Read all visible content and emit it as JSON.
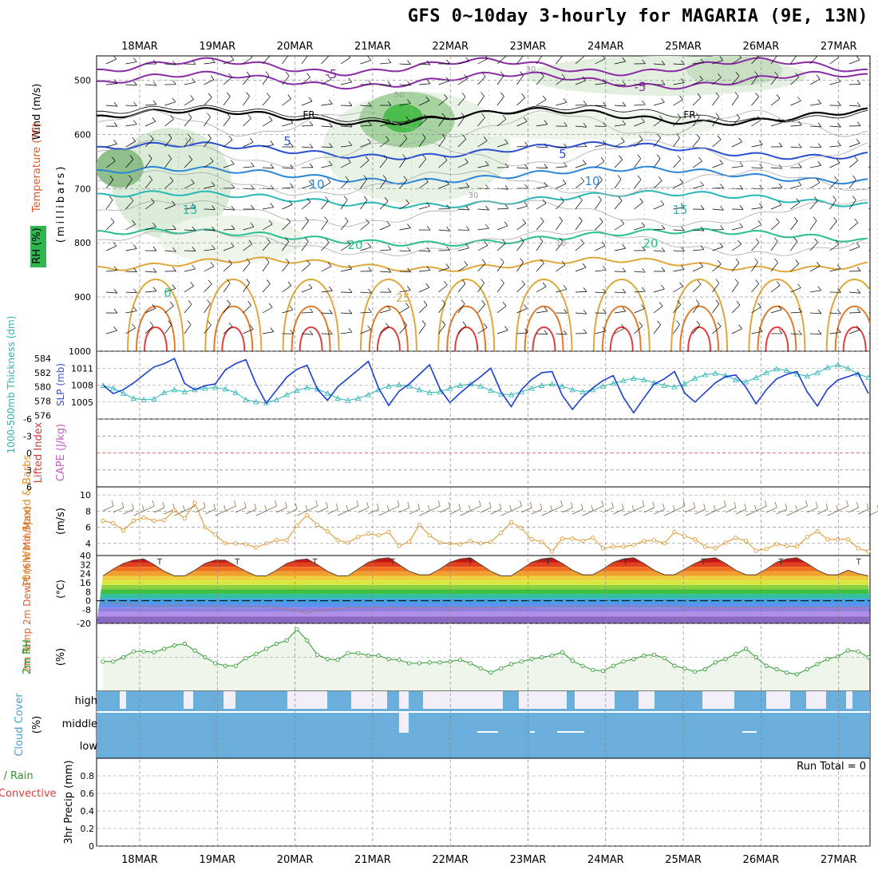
{
  "title": "GFS 0~10day 3-hourly for MAGARIA (9E, 13N)",
  "dates": [
    "18MAR",
    "19MAR",
    "20MAR",
    "21MAR",
    "22MAR",
    "23MAR",
    "24MAR",
    "25MAR",
    "26MAR",
    "27MAR"
  ],
  "colors": {
    "grid": "#888888",
    "rh_fill": "#9fc99f",
    "slp_line": "#1a3fd1",
    "thickness_line": "#2ab5b5",
    "wind_speed": "#e09020",
    "rh2m": "#2a9a2a",
    "cloud": "#6aaedc",
    "zero_line": "#d04040"
  },
  "panels": {
    "upper_air": {
      "ylabel_wind": "Wind (m/s)",
      "ylabel_temp": "Temperature (°C)",
      "ylabel_rh": "RH (%)",
      "ylabel_units": "(millibars)",
      "ticks": [
        "500",
        "600",
        "700",
        "800",
        "900",
        "1000"
      ],
      "contour_labels": [
        "-5",
        "-5",
        "FR",
        "FR",
        "5",
        "5",
        "10",
        "10",
        "15",
        "15",
        "20",
        "20",
        "30",
        "50",
        "10",
        "10",
        "30",
        "0",
        "25"
      ]
    },
    "slp_thickness": {
      "ylabel_left": "1000-500mb Thickness (dm)",
      "ylabel_right": "SLP (mb)",
      "ticks_left": [
        "584",
        "582",
        "580",
        "578",
        "576"
      ],
      "ticks_right": [
        "1011",
        "1008",
        "1005"
      ]
    },
    "cape_li": {
      "ylabel_left": "Lifted Index",
      "ylabel_right": "CAPE (J/kg)",
      "ticks": [
        "-6",
        "-3",
        "0",
        "3",
        "6"
      ]
    },
    "wind10m": {
      "ylabel": "10m Wind Speed & Barbs",
      "units": "(m/s)",
      "ticks": [
        "10",
        "8",
        "6",
        "4"
      ]
    },
    "temp2m": {
      "ylabel": "2m Temp 2m DewPt (6hr Min/Max)",
      "units": "(°C)",
      "ticks": [
        "40",
        "32",
        "24",
        "16",
        "8",
        "0",
        "-8",
        "-20"
      ]
    },
    "rh2m": {
      "ylabel": "2m RH",
      "units": "(%)"
    },
    "cloud": {
      "ylabel": "Cloud Cover",
      "units": "(%)",
      "levels": [
        "high",
        "middle",
        "low"
      ]
    },
    "precip": {
      "ylabel_left": "Total / Rain",
      "ylabel_left2": "Convective",
      "ylabel": "3hr Precip (mm)",
      "ticks": [
        "0.8",
        "0.6",
        "0.4",
        "0.2",
        "0"
      ],
      "run_total": "Run Total = 0"
    }
  },
  "chart_data": [
    {
      "type": "line",
      "name": "upper-air cross section",
      "x": [
        "18MAR",
        "19MAR",
        "20MAR",
        "21MAR",
        "22MAR",
        "23MAR",
        "24MAR",
        "25MAR",
        "26MAR",
        "27MAR"
      ],
      "ylim": [
        1000,
        450
      ],
      "ylabel": "(millibars)"
    },
    {
      "type": "line",
      "name": "SLP and thickness",
      "series": [
        {
          "name": "SLP (mb)",
          "values": [
            1008,
            1006.5,
            1007.2,
            1008.4,
            1009.8,
            1011.2,
            1011.8,
            1012.7,
            1008.3,
            1007.2,
            1007.9,
            1008.2,
            1010.7,
            1011.8,
            1012.5,
            1008.2,
            1004.8,
            1007.1,
            1009.4,
            1010.8,
            1011.5,
            1007.3,
            1005.3,
            1007.7,
            1009.2,
            1010.7,
            1012.2,
            1007.5,
            1004.4,
            1006.9,
            1008.2,
            1009.9,
            1011.6,
            1007.4,
            1004.9,
            1006.6,
            1008.1,
            1009.5,
            1011,
            1006.8,
            1004.2,
            1007.2,
            1009,
            1010.2,
            1010.4,
            1006.2,
            1003.7,
            1005.9,
            1007.5,
            1008.8,
            1009.7,
            1005.8,
            1003.1,
            1005.7,
            1008.2,
            1009.1,
            1010.4,
            1006.6,
            1005,
            1006.7,
            1008.4,
            1009.5,
            1009.8,
            1007.6,
            1004.7,
            1007.2,
            1009.1,
            1009.9,
            1010.4,
            1006.8,
            1004.3,
            1007.3,
            1008.9,
            1009.5,
            1010.1,
            1006.5
          ]
        },
        {
          "name": "1000-500mb Thickness (dm)",
          "values": [
            580.2,
            579.8,
            579.1,
            578.4,
            578.2,
            578.3,
            579.2,
            579.6,
            579.3,
            579.6,
            579.8,
            579.9,
            579.7,
            579.2,
            578.2,
            577.9,
            577.8,
            578.2,
            578.9,
            579.5,
            579.9,
            579.7,
            579.1,
            578.4,
            578.1,
            578.4,
            578.9,
            579.6,
            580.1,
            580.3,
            580.1,
            579.6,
            579.2,
            579.3,
            579.8,
            580.2,
            580.4,
            580.1,
            579.5,
            579.0,
            578.9,
            579.3,
            579.8,
            580.2,
            580.4,
            580.1,
            579.6,
            579.3,
            579.6,
            580.1,
            580.5,
            580.9,
            581.2,
            581.0,
            580.6,
            580.2,
            580.0,
            580.4,
            581.2,
            581.7,
            581.9,
            581.6,
            581.0,
            580.7,
            581.3,
            582.0,
            582.5,
            582.3,
            581.8,
            581.5,
            582.0,
            582.7,
            583.1,
            582.6,
            581.8,
            581.3
          ]
        }
      ]
    },
    {
      "type": "line",
      "name": "10m wind speed",
      "ylim": [
        2.5,
        11
      ],
      "series": [
        {
          "name": "Speed (m/s)",
          "values": [
            6.8,
            6.5,
            5.6,
            6.8,
            7.2,
            6.8,
            6.9,
            8.1,
            7.1,
            9.0,
            6.0,
            5.1,
            4.0,
            4.0,
            3.9,
            3.5,
            4.0,
            4.4,
            4.4,
            6.2,
            7.5,
            6.3,
            5.5,
            4.4,
            4.1,
            4.8,
            5.2,
            5.0,
            5.4,
            3.7,
            4.2,
            6.3,
            5.0,
            4.1,
            4.0,
            3.9,
            4.3,
            4.0,
            4.2,
            5.3,
            6.6,
            5.9,
            4.5,
            4.2,
            3.0,
            4.6,
            4.6,
            4.3,
            4.7,
            3.4,
            3.6,
            3.6,
            3.8,
            4.3,
            4.4,
            4.0,
            5.4,
            4.9,
            4.5,
            3.6,
            3.4,
            4.1,
            4.7,
            4.3,
            3.1,
            3.3,
            3.9,
            3.7,
            3.6,
            4.8,
            5.5,
            4.5,
            4.5,
            4.5,
            3.4,
            3.0
          ]
        }
      ]
    },
    {
      "type": "line",
      "name": "2m temperature and dewpoint",
      "ylim": [
        -20,
        40
      ],
      "series": [
        {
          "name": "2m Temp (°C)",
          "values": [
            22,
            28,
            33,
            36,
            37,
            32,
            26,
            22,
            22,
            27,
            33,
            36,
            36,
            31,
            26,
            22,
            22,
            27,
            33,
            36,
            37,
            32,
            26,
            22,
            22,
            28,
            34,
            37,
            38,
            32,
            26,
            23,
            23,
            28,
            34,
            37,
            38,
            32,
            26,
            22,
            22,
            28,
            34,
            37,
            38,
            33,
            27,
            23,
            23,
            28,
            34,
            37,
            38,
            33,
            27,
            23,
            23,
            28,
            33,
            37,
            38,
            33,
            27,
            23,
            23,
            28,
            34,
            37,
            38,
            33,
            27,
            23,
            23,
            27,
            24,
            22
          ]
        },
        {
          "name": "2m DewPt (°C)",
          "values": [
            -2,
            -2,
            -3,
            -4,
            -5,
            -5,
            -5,
            -4,
            -4,
            -4,
            -5,
            -5,
            -5,
            -5,
            -5,
            -5,
            -5,
            -6,
            -7,
            -9,
            -11,
            -9,
            -8,
            -7,
            -6,
            -6,
            -6,
            -6,
            -6,
            -6,
            -6,
            -6,
            -6,
            -6,
            -6,
            -6,
            -6,
            -6,
            -6,
            -6,
            -6,
            -6,
            -6,
            -5,
            -5,
            -5,
            -5,
            -5,
            -5,
            -5,
            -5,
            -5,
            -5,
            -5,
            -5,
            -5,
            -5,
            -6,
            -6,
            -6,
            -6,
            -6,
            -6,
            -6,
            -6,
            -6,
            -6,
            -6,
            -6,
            -6,
            -6,
            -6,
            -6,
            -6,
            -6,
            -6
          ]
        }
      ]
    },
    {
      "type": "area",
      "name": "2m RH",
      "ylim": [
        0,
        80
      ],
      "series": [
        {
          "name": "2m RH (%)",
          "values": [
            35,
            35,
            40,
            47,
            47,
            46,
            50,
            54,
            56,
            48,
            40,
            33,
            30,
            30,
            39,
            44,
            50,
            56,
            60,
            73,
            60,
            43,
            38,
            37,
            45,
            45,
            42,
            42,
            38,
            37,
            33,
            33,
            34,
            34,
            35,
            37,
            33,
            27,
            22,
            27,
            32,
            35,
            38,
            40,
            42,
            46,
            36,
            30,
            25,
            24,
            30,
            35,
            38,
            42,
            43,
            39,
            30,
            27,
            23,
            26,
            34,
            38,
            44,
            50,
            40,
            30,
            26,
            22,
            20,
            26,
            32,
            38,
            41,
            48,
            47,
            40
          ]
        }
      ]
    },
    {
      "type": "bar",
      "name": "Cloud Cover",
      "categories": [
        "high",
        "middle",
        "low"
      ],
      "ylim": [
        0,
        100
      ]
    },
    {
      "type": "bar",
      "name": "3hr Precip",
      "ylim": [
        0,
        1
      ],
      "values": [
        0
      ],
      "annotation": "Run Total = 0"
    }
  ]
}
